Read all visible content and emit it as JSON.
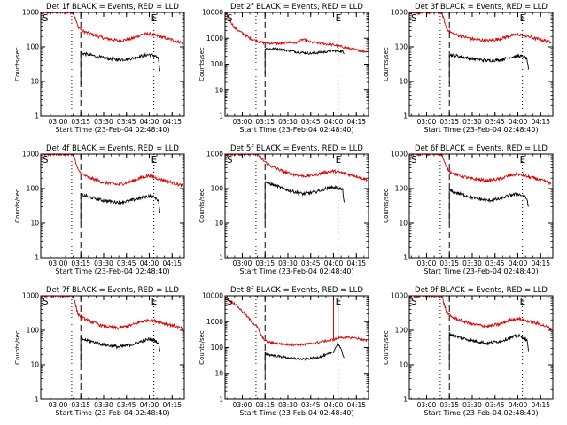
{
  "page": {
    "background": "#ffffff"
  },
  "colors": {
    "events": "#000000",
    "lld": "#dd0000",
    "axes": "#000000"
  },
  "chart_data": [
    {
      "type": "line",
      "title": "Det 1f BLACK = Events, RED = LLD",
      "xlabel": "Start Time (23-Feb-04 02:48:40)",
      "ylabel": "Counts/sec",
      "yscale": "log",
      "ylim": [
        1,
        1000
      ],
      "yticks": [
        "1",
        "10",
        "100",
        "1000"
      ],
      "xticks": [
        "03:00",
        "03:15",
        "03:30",
        "03:45",
        "04:00",
        "04:15"
      ],
      "xlim": [
        "02:48:40",
        "04:23"
      ],
      "markers": {
        "S": "03:09",
        "E": "04:03"
      },
      "dotted_lines": [
        "03:09",
        "04:03"
      ],
      "dashed_line": "03:15",
      "series": [
        {
          "name": "RED",
          "color": "#dd0000",
          "x": [
            "02:48:40",
            "03:10",
            "03:13",
            "03:16",
            "03:20",
            "03:30",
            "03:40",
            "03:48",
            "03:55",
            "04:00",
            "04:05",
            "04:15",
            "04:22"
          ],
          "y": [
            1000,
            1000,
            400,
            290,
            250,
            180,
            150,
            170,
            230,
            240,
            210,
            160,
            130
          ]
        },
        {
          "name": "BLACK",
          "color": "#000000",
          "x": [
            "03:15",
            "03:15",
            "03:16",
            "03:20",
            "03:30",
            "03:40",
            "03:48",
            "03:55",
            "04:00",
            "04:04",
            "04:06",
            "04:07"
          ],
          "y": [
            8,
            70,
            65,
            60,
            48,
            42,
            46,
            55,
            60,
            55,
            45,
            20
          ]
        }
      ]
    },
    {
      "type": "line",
      "title": "Det 2f BLACK = Events, RED = LLD",
      "xlabel": "Start Time (23-Feb-04 02:48:40)",
      "ylabel": "Counts/sec",
      "yscale": "log",
      "ylim": [
        1,
        10000
      ],
      "yticks": [
        "1",
        "10",
        "100",
        "1000",
        "10000"
      ],
      "xticks": [
        "03:00",
        "03:15",
        "03:30",
        "03:45",
        "04:00",
        "04:15"
      ],
      "xlim": [
        "02:48:40",
        "04:23"
      ],
      "markers": {
        "S": "03:09",
        "E": "04:03"
      },
      "dotted_lines": [
        "03:09",
        "04:03"
      ],
      "dashed_line": "03:15",
      "series": [
        {
          "name": "RED",
          "color": "#dd0000",
          "x": [
            "02:48:40",
            "02:55",
            "03:05",
            "03:12",
            "03:16",
            "03:25",
            "03:30",
            "03:35",
            "03:40",
            "03:45",
            "03:50",
            "03:55",
            "04:00",
            "04:05",
            "04:15",
            "04:22"
          ],
          "y": [
            10000,
            2500,
            1000,
            700,
            650,
            620,
            700,
            650,
            900,
            700,
            650,
            600,
            550,
            480,
            350,
            300
          ]
        },
        {
          "name": "BLACK",
          "color": "#000000",
          "x": [
            "03:15",
            "03:15",
            "03:16",
            "03:25",
            "03:35",
            "03:45",
            "03:55",
            "04:00",
            "04:04",
            "04:06",
            "04:07"
          ],
          "y": [
            40,
            420,
            400,
            380,
            300,
            260,
            300,
            330,
            320,
            300,
            250
          ]
        }
      ]
    },
    {
      "type": "line",
      "title": "Det 3f BLACK = Events, RED = LLD",
      "xlabel": "Start Time (23-Feb-04 02:48:40)",
      "ylabel": "Counts/sec",
      "yscale": "log",
      "ylim": [
        1,
        1000
      ],
      "yticks": [
        "1",
        "10",
        "100",
        "1000"
      ],
      "xticks": [
        "03:00",
        "03:15",
        "03:30",
        "03:45",
        "04:00",
        "04:15"
      ],
      "xlim": [
        "02:48:40",
        "04:23"
      ],
      "markers": {
        "S": "03:09",
        "E": "04:03"
      },
      "dotted_lines": [
        "03:09",
        "04:03"
      ],
      "dashed_line": "03:15",
      "series": [
        {
          "name": "RED",
          "color": "#dd0000",
          "x": [
            "02:48:40",
            "03:10",
            "03:13",
            "03:16",
            "03:20",
            "03:30",
            "03:40",
            "03:48",
            "03:55",
            "04:00",
            "04:05",
            "04:15",
            "04:22"
          ],
          "y": [
            1000,
            1000,
            350,
            260,
            220,
            170,
            150,
            170,
            210,
            230,
            210,
            160,
            140
          ]
        },
        {
          "name": "BLACK",
          "color": "#000000",
          "x": [
            "03:15",
            "03:15",
            "03:16",
            "03:20",
            "03:30",
            "03:40",
            "03:48",
            "03:55",
            "04:00",
            "04:04",
            "04:06",
            "04:07"
          ],
          "y": [
            9,
            60,
            58,
            55,
            45,
            40,
            42,
            50,
            55,
            52,
            45,
            22
          ]
        }
      ]
    },
    {
      "type": "line",
      "title": "Det 4f BLACK = Events, RED = LLD",
      "xlabel": "Start Time (23-Feb-04 02:48:40)",
      "ylabel": "Counts/sec",
      "yscale": "log",
      "ylim": [
        1,
        1000
      ],
      "yticks": [
        "1",
        "10",
        "100",
        "1000"
      ],
      "xticks": [
        "03:00",
        "03:15",
        "03:30",
        "03:45",
        "04:00",
        "04:15"
      ],
      "xlim": [
        "02:48:40",
        "04:23"
      ],
      "markers": {
        "S": "03:09",
        "E": "04:03"
      },
      "dotted_lines": [
        "03:09",
        "04:03"
      ],
      "dashed_line": "03:15",
      "series": [
        {
          "name": "RED",
          "color": "#dd0000",
          "x": [
            "02:48:40",
            "03:10",
            "03:13",
            "03:16",
            "03:20",
            "03:30",
            "03:40",
            "03:48",
            "03:55",
            "04:00",
            "04:05",
            "04:15",
            "04:22"
          ],
          "y": [
            1000,
            1000,
            350,
            260,
            210,
            150,
            130,
            160,
            210,
            240,
            200,
            150,
            120
          ]
        },
        {
          "name": "BLACK",
          "color": "#000000",
          "x": [
            "03:15",
            "03:15",
            "03:16",
            "03:20",
            "03:30",
            "03:40",
            "03:48",
            "03:55",
            "04:00",
            "04:04",
            "04:06",
            "04:07"
          ],
          "y": [
            10,
            70,
            65,
            58,
            45,
            40,
            45,
            55,
            62,
            55,
            45,
            20
          ]
        }
      ]
    },
    {
      "type": "line",
      "title": "Det 5f BLACK = Events, RED = LLD",
      "xlabel": "Start Time (23-Feb-04 02:48:40)",
      "ylabel": "Counts/sec",
      "yscale": "log",
      "ylim": [
        1,
        1000
      ],
      "yticks": [
        "1",
        "10",
        "100",
        "1000"
      ],
      "xticks": [
        "03:00",
        "03:15",
        "03:30",
        "03:45",
        "04:00",
        "04:15"
      ],
      "xlim": [
        "02:48:40",
        "04:23"
      ],
      "markers": {
        "S": "03:09",
        "E": "04:03"
      },
      "dotted_lines": [
        "03:09",
        "04:03"
      ],
      "dashed_line": "03:15",
      "series": [
        {
          "name": "RED",
          "color": "#dd0000",
          "x": [
            "02:48:40",
            "03:10",
            "03:13",
            "03:16",
            "03:20",
            "03:30",
            "03:40",
            "03:48",
            "03:55",
            "04:00",
            "04:05",
            "04:15",
            "04:22"
          ],
          "y": [
            1000,
            1000,
            700,
            550,
            420,
            280,
            230,
            250,
            300,
            320,
            290,
            230,
            180
          ]
        },
        {
          "name": "BLACK",
          "color": "#000000",
          "x": [
            "03:15",
            "03:15",
            "03:16",
            "03:20",
            "03:30",
            "03:40",
            "03:48",
            "03:55",
            "04:00",
            "04:04",
            "04:06",
            "04:07"
          ],
          "y": [
            10,
            160,
            150,
            130,
            90,
            70,
            80,
            100,
            110,
            100,
            90,
            40
          ]
        }
      ]
    },
    {
      "type": "line",
      "title": "Det 6f BLACK = Events, RED = LLD",
      "xlabel": "Start Time (23-Feb-04 02:48:40)",
      "ylabel": "Counts/sec",
      "yscale": "log",
      "ylim": [
        1,
        1000
      ],
      "yticks": [
        "1",
        "10",
        "100",
        "1000"
      ],
      "xticks": [
        "03:00",
        "03:15",
        "03:30",
        "03:45",
        "04:00",
        "04:15"
      ],
      "xlim": [
        "02:48:40",
        "04:23"
      ],
      "markers": {
        "S": "03:09",
        "E": "04:03"
      },
      "dotted_lines": [
        "03:09",
        "04:03"
      ],
      "dashed_line": "03:15",
      "series": [
        {
          "name": "RED",
          "color": "#dd0000",
          "x": [
            "02:48:40",
            "03:10",
            "03:13",
            "03:16",
            "03:20",
            "03:30",
            "03:40",
            "03:48",
            "03:55",
            "04:00",
            "04:05",
            "04:15",
            "04:22"
          ],
          "y": [
            1000,
            1000,
            400,
            300,
            250,
            190,
            170,
            190,
            240,
            260,
            230,
            180,
            140
          ]
        },
        {
          "name": "BLACK",
          "color": "#000000",
          "x": [
            "03:15",
            "03:15",
            "03:16",
            "03:20",
            "03:30",
            "03:40",
            "03:48",
            "03:55",
            "04:00",
            "04:04",
            "04:06",
            "04:07"
          ],
          "y": [
            10,
            90,
            85,
            75,
            55,
            45,
            50,
            65,
            70,
            60,
            50,
            30
          ]
        }
      ]
    },
    {
      "type": "line",
      "title": "Det 7f BLACK = Events, RED = LLD",
      "xlabel": "Start Time (23-Feb-04 02:48:40)",
      "ylabel": "Counts/sec",
      "yscale": "log",
      "ylim": [
        1,
        1000
      ],
      "yticks": [
        "1",
        "10",
        "100",
        "1000"
      ],
      "xticks": [
        "03:00",
        "03:15",
        "03:30",
        "03:45",
        "04:00",
        "04:15"
      ],
      "xlim": [
        "02:48:40",
        "04:23"
      ],
      "markers": {
        "S": "03:09",
        "E": "04:03"
      },
      "dotted_lines": [
        "03:09",
        "04:03"
      ],
      "dashed_line": "03:15",
      "series": [
        {
          "name": "RED",
          "color": "#dd0000",
          "x": [
            "02:48:40",
            "03:10",
            "03:13",
            "03:16",
            "03:20",
            "03:30",
            "03:40",
            "03:48",
            "03:55",
            "04:00",
            "04:05",
            "04:15",
            "04:22"
          ],
          "y": [
            1000,
            1000,
            300,
            230,
            190,
            130,
            115,
            140,
            180,
            200,
            180,
            140,
            110
          ]
        },
        {
          "name": "BLACK",
          "color": "#000000",
          "x": [
            "03:15",
            "03:15",
            "03:16",
            "03:20",
            "03:30",
            "03:40",
            "03:48",
            "03:55",
            "04:00",
            "04:04",
            "04:06",
            "04:07"
          ],
          "y": [
            10,
            60,
            55,
            50,
            38,
            33,
            38,
            48,
            55,
            50,
            42,
            25
          ]
        }
      ]
    },
    {
      "type": "line",
      "title": "Det 8f BLACK = Events, RED = LLD",
      "xlabel": "Start Time (23-Feb-04 02:48:40)",
      "ylabel": "Counts/sec",
      "yscale": "log",
      "ylim": [
        1,
        10000
      ],
      "yticks": [
        "1",
        "10",
        "100",
        "1000",
        "10000"
      ],
      "xticks": [
        "03:00",
        "03:15",
        "03:30",
        "03:45",
        "04:00",
        "04:15"
      ],
      "xlim": [
        "02:48:40",
        "04:23"
      ],
      "markers": {
        "S": "03:09",
        "E": "04:03"
      },
      "dotted_lines": [
        "03:09",
        "04:03"
      ],
      "dashed_line": "03:15",
      "series": [
        {
          "name": "RED",
          "color": "#dd0000",
          "x": [
            "02:48:40",
            "02:55",
            "03:00",
            "03:05",
            "03:10",
            "03:13",
            "03:16",
            "03:20",
            "03:30",
            "03:40",
            "03:48",
            "03:55",
            "04:00",
            "04:05",
            "04:15",
            "04:22"
          ],
          "y": [
            8000,
            5000,
            2500,
            1200,
            600,
            250,
            170,
            150,
            130,
            130,
            150,
            180,
            200,
            250,
            230,
            180
          ]
        },
        {
          "name": "BLACK",
          "color": "#000000",
          "x": [
            "03:15",
            "03:15",
            "03:16",
            "03:20",
            "03:30",
            "03:40",
            "03:48",
            "03:55",
            "04:00",
            "04:03",
            "04:05",
            "04:07"
          ],
          "y": [
            10,
            60,
            55,
            50,
            40,
            35,
            40,
            50,
            70,
            150,
            80,
            40
          ]
        }
      ]
    },
    {
      "type": "line",
      "title": "Det 9f BLACK = Events, RED = LLD",
      "xlabel": "Start Time (23-Feb-04 02:48:40)",
      "ylabel": "Counts/sec",
      "yscale": "log",
      "ylim": [
        1,
        1000
      ],
      "yticks": [
        "1",
        "10",
        "100",
        "1000"
      ],
      "xticks": [
        "03:00",
        "03:15",
        "03:30",
        "03:45",
        "04:00",
        "04:15"
      ],
      "xlim": [
        "02:48:40",
        "04:23"
      ],
      "markers": {
        "S": "03:09",
        "E": "04:03"
      },
      "dotted_lines": [
        "03:09",
        "04:03"
      ],
      "dashed_line": "03:15",
      "series": [
        {
          "name": "RED",
          "color": "#dd0000",
          "x": [
            "02:48:40",
            "03:10",
            "03:13",
            "03:16",
            "03:20",
            "03:30",
            "03:40",
            "03:48",
            "03:55",
            "04:00",
            "04:05",
            "04:15",
            "04:22"
          ],
          "y": [
            1000,
            1000,
            350,
            250,
            210,
            150,
            130,
            150,
            200,
            220,
            190,
            150,
            110
          ]
        },
        {
          "name": "BLACK",
          "color": "#000000",
          "x": [
            "03:15",
            "03:15",
            "03:16",
            "03:20",
            "03:30",
            "03:40",
            "03:48",
            "03:55",
            "04:00",
            "04:04",
            "04:06",
            "04:07"
          ],
          "y": [
            10,
            80,
            75,
            65,
            50,
            42,
            48,
            60,
            70,
            60,
            50,
            25
          ]
        }
      ]
    }
  ]
}
